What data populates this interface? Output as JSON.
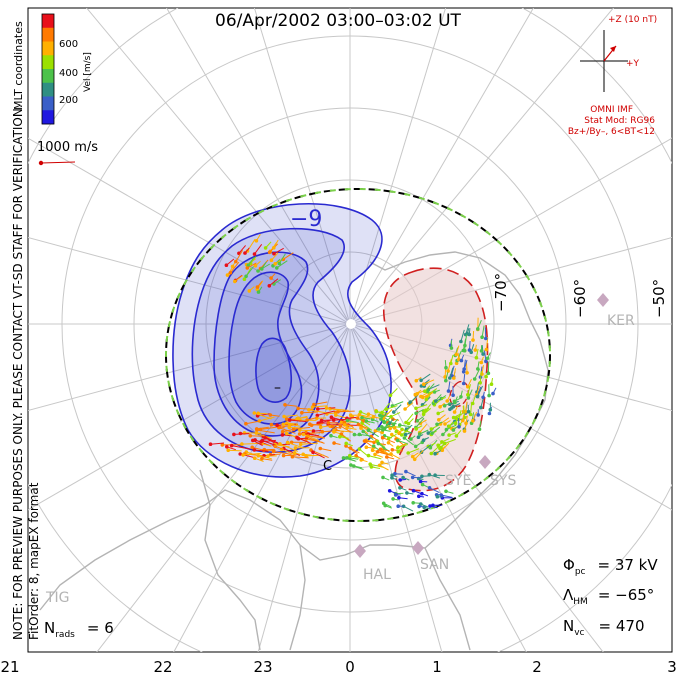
{
  "title": "06/Apr/2002 03:00–03:02 UT",
  "colorbar": {
    "label": "Vel [m/s]",
    "ticks": [
      "600",
      "400",
      "200"
    ],
    "colors": [
      "#e8101a",
      "#ff7a00",
      "#ffb000",
      "#9be000",
      "#4cc24a",
      "#2f8f83",
      "#3a5fc8",
      "#2018e0"
    ]
  },
  "coordinate_label": "MLT coordinates",
  "scale_vector": {
    "label": "1000 m/s"
  },
  "imf": {
    "z_label": "+Z (10 nT)",
    "y_label": "+Y",
    "source": "OMNI IMF",
    "model_line": "Stat Mod: RG96",
    "condition_line": "Bz+/By–, 6<BT<12"
  },
  "side_notice": "NOTE: FOR PREVIEW PURPOSES ONLY. PLEASE CONTACT VT-SD STAFF FOR VERIFICATION.",
  "fit_order": "FitOrder: 8, mapEX format",
  "latitude_labels": [
    "−70°",
    "−60°",
    "−50°"
  ],
  "contour_labels": [
    "−9",
    "–",
    "C"
  ],
  "radar_sites": [
    "KER",
    "SYE",
    "SYS",
    "HAL",
    "SAN",
    "TIG"
  ],
  "mlt_axis": [
    "21",
    "22",
    "23",
    "0",
    "1",
    "2",
    "3"
  ],
  "stats": {
    "phi_symbol": "Φ",
    "phi_sub": "pc",
    "phi_value": "= 37 kV",
    "lambda_symbol": "Λ",
    "lambda_sub": "HM",
    "lambda_value": "= −65°",
    "nvc_symbol": "N",
    "nvc_sub": "vc",
    "nvc_value": "= 470",
    "nrads_symbol": "N",
    "nrads_sub": "rads",
    "nrads_value": "= 6"
  },
  "colors": {
    "negative_cell": "#2a2ad0",
    "positive_cell": "#d02020",
    "boundary_dash_a": "#000000",
    "boundary_dash_b": "#7bd04a",
    "grid": "#c8c8c8",
    "coast": "#b4b4b4"
  }
}
